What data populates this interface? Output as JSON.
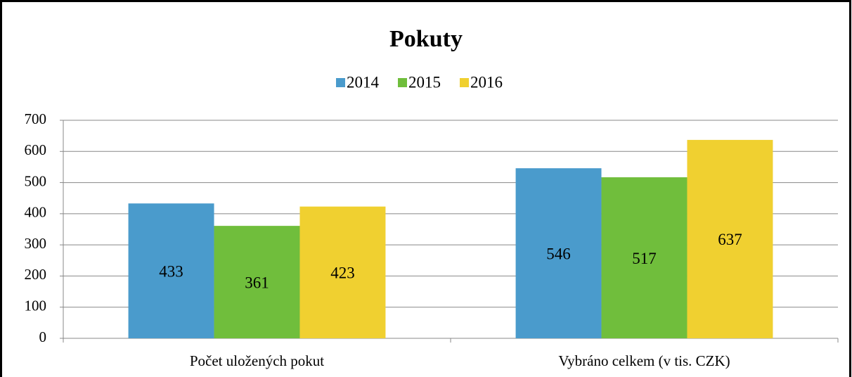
{
  "chart_data": {
    "type": "bar",
    "title": "Pokuty",
    "categories": [
      "Počet uložených pokut",
      "Vybráno celkem (v tis. CZK)"
    ],
    "series": [
      {
        "name": "2014",
        "color": "#4a9bcc",
        "values": [
          433,
          546
        ]
      },
      {
        "name": "2015",
        "color": "#70be3c",
        "values": [
          361,
          517
        ]
      },
      {
        "name": "2016",
        "color": "#f0d030",
        "values": [
          423,
          637
        ]
      }
    ],
    "ylim": [
      0,
      700
    ],
    "yticks": [
      0,
      100,
      200,
      300,
      400,
      500,
      600,
      700
    ],
    "grid": true,
    "legend": "top"
  }
}
